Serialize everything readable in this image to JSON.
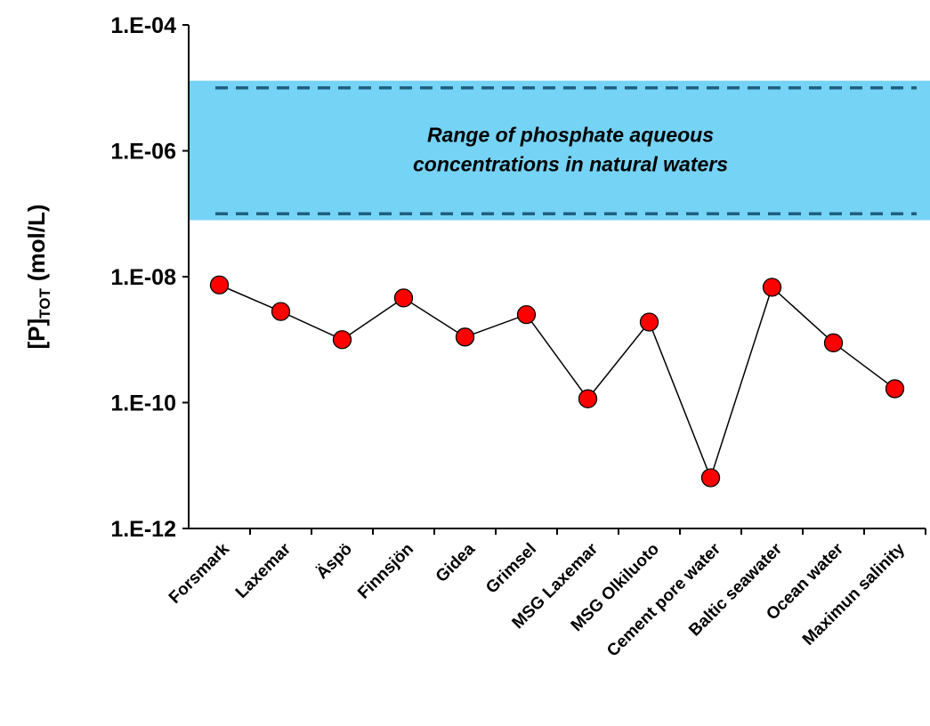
{
  "chart_data": {
    "type": "line",
    "y_label": {
      "main": "[P]",
      "sub": "TOT",
      "unit": "(mol/L)"
    },
    "categories": [
      "Forsmark",
      "Laxemar",
      "Äspö",
      "Finnsjön",
      "Gidea",
      "Grimsel",
      "MSG Laxemar",
      "MSG Olkiluoto",
      "Cement pore water",
      "Baltic seawater",
      "Ocean water",
      "Maximun salinity"
    ],
    "series": [
      {
        "color": "#ff0000",
        "values": [
          7.4e-09,
          2.8e-09,
          1e-09,
          4.6e-09,
          1.1e-09,
          2.5e-09,
          1.15e-10,
          1.9e-09,
          6.4e-12,
          6.8e-09,
          8.9e-10,
          1.66e-10
        ]
      }
    ],
    "ylim": [
      1e-12,
      0.0001
    ],
    "log_scale": true,
    "yticks": [
      {
        "value": 1e-12,
        "label": "1.E-12"
      },
      {
        "value": 1e-10,
        "label": "1.E-10"
      },
      {
        "value": 1e-08,
        "label": "1.E-08"
      },
      {
        "value": 1e-06,
        "label": "1.E-06"
      },
      {
        "value": 0.0001,
        "label": "1.E-04"
      }
    ],
    "band": {
      "range": [
        7.9e-08,
        1.3e-05
      ],
      "dashed": [
        1e-07,
        1e-05
      ],
      "color": "#75d3f5",
      "line_color": "#1f5f7f",
      "text": [
        "Range of phosphate aqueous",
        "concentrations in natural waters"
      ]
    }
  }
}
